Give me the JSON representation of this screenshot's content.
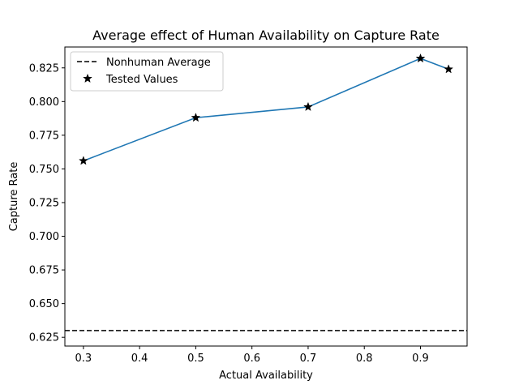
{
  "chart_data": {
    "type": "line",
    "title": "Average effect of Human Availability on Capture Rate",
    "xlabel": "Actual Availability",
    "ylabel": "Capture Rate",
    "xlim": [
      0.267,
      0.983
    ],
    "ylim": [
      0.6185,
      0.8405
    ],
    "xticks": [
      0.3,
      0.4,
      0.5,
      0.6,
      0.7,
      0.8,
      0.9
    ],
    "xtick_labels": [
      "0.3",
      "0.4",
      "0.5",
      "0.6",
      "0.7",
      "0.8",
      "0.9"
    ],
    "yticks": [
      0.625,
      0.65,
      0.675,
      0.7,
      0.725,
      0.75,
      0.775,
      0.8,
      0.825
    ],
    "ytick_labels": [
      "0.625",
      "0.650",
      "0.675",
      "0.700",
      "0.725",
      "0.750",
      "0.775",
      "0.800",
      "0.825"
    ],
    "grid": false,
    "legend_position": "top-left",
    "series": [
      {
        "kind": "line",
        "color": "#1f77b4",
        "x": [
          0.3,
          0.5,
          0.7,
          0.9,
          0.95
        ],
        "y": [
          0.756,
          0.788,
          0.796,
          0.832,
          0.824
        ]
      },
      {
        "name": "Tested Values",
        "kind": "scatter",
        "marker": "star",
        "color": "#000000",
        "x": [
          0.3,
          0.5,
          0.7,
          0.9,
          0.95
        ],
        "y": [
          0.756,
          0.788,
          0.796,
          0.832,
          0.824
        ]
      },
      {
        "name": "Nonhuman Average",
        "kind": "hline",
        "style": "dashed",
        "color": "#000000",
        "y": 0.63
      }
    ],
    "legend": [
      {
        "label": "Nonhuman Average",
        "symbol": "dashed-line"
      },
      {
        "label": "Tested Values",
        "symbol": "star"
      }
    ]
  }
}
